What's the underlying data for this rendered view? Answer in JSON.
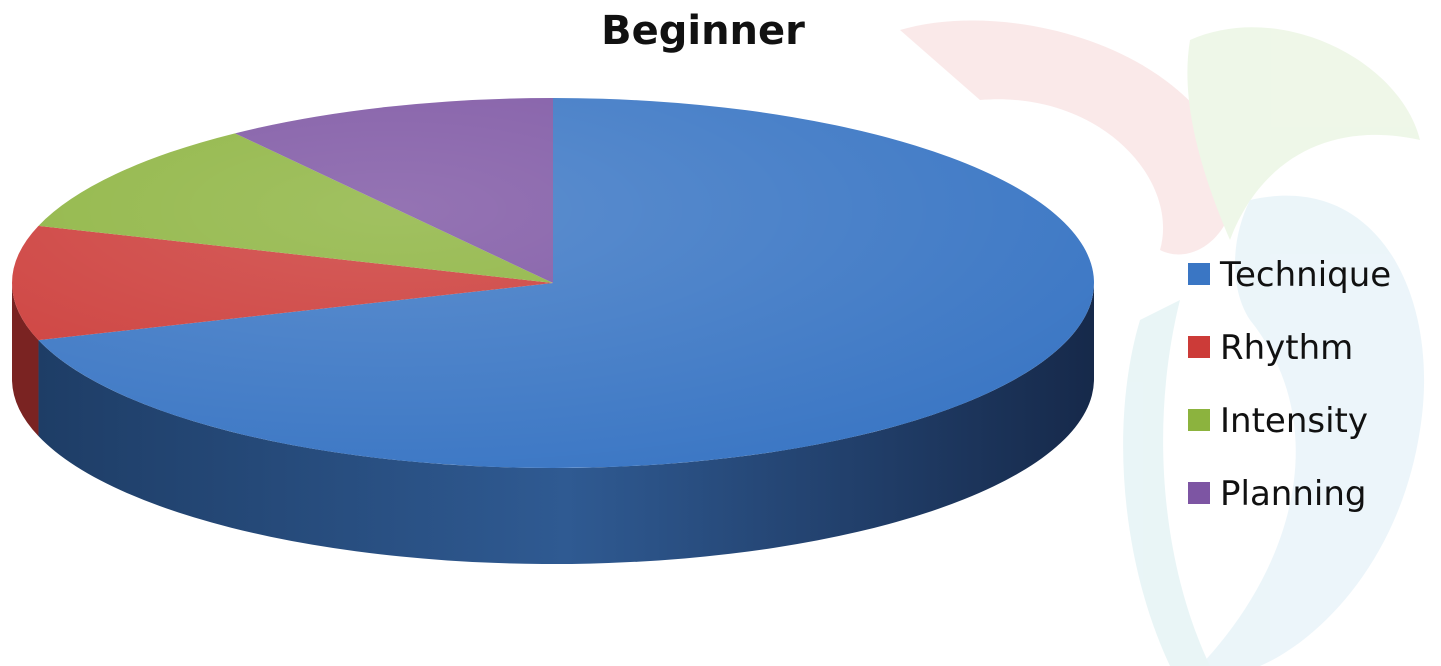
{
  "chart_data": {
    "type": "pie",
    "title": "Beginner",
    "categories": [
      "Technique",
      "Rhythm",
      "Intensity",
      "Planning"
    ],
    "values": [
      70,
      10,
      10,
      10
    ],
    "unit": "",
    "legend_position": "right",
    "style": "3d",
    "colors": {
      "Technique": "#3A76C4",
      "Rhythm": "#CC3B38",
      "Intensity": "#8CB33E",
      "Planning": "#7D55A3"
    }
  }
}
